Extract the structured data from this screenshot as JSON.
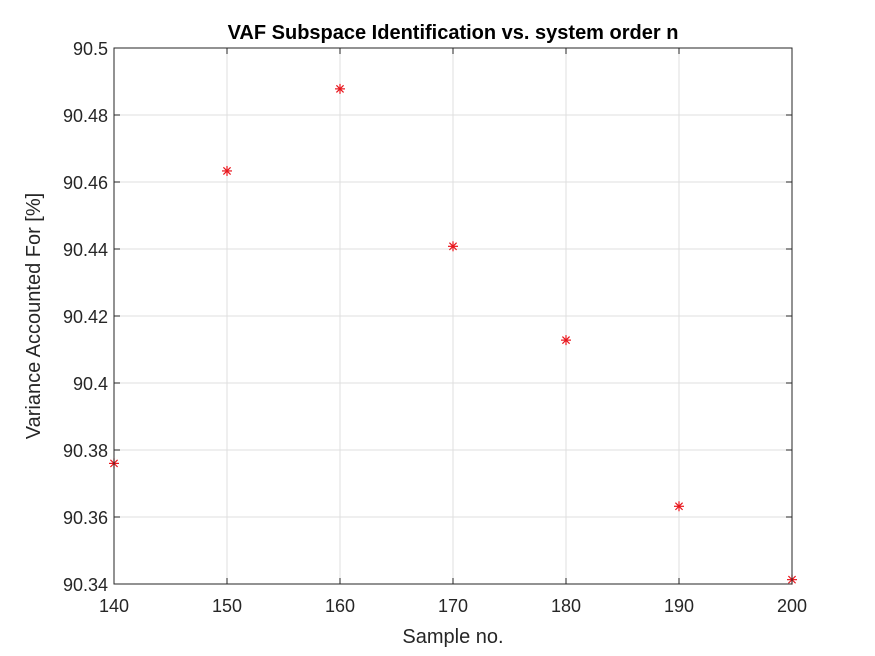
{
  "chart_data": {
    "type": "scatter",
    "title": "VAF Subspace Identification vs. system order n",
    "xlabel": "Sample no.",
    "ylabel": "Variance Accounted For [%]",
    "xlim": [
      140,
      200
    ],
    "ylim": [
      90.34,
      90.5
    ],
    "xticks": [
      140,
      150,
      160,
      170,
      180,
      190,
      200
    ],
    "xtick_labels": [
      "140",
      "150",
      "160",
      "170",
      "180",
      "190",
      "200"
    ],
    "yticks": [
      90.34,
      90.36,
      90.38,
      90.4,
      90.42,
      90.44,
      90.46,
      90.48,
      90.5
    ],
    "ytick_labels": [
      "90.34",
      "90.36",
      "90.38",
      "90.4",
      "90.42",
      "90.44",
      "90.46",
      "90.48",
      "90.5"
    ],
    "grid": true,
    "marker": "asterisk",
    "marker_color": "#e8161d",
    "series": [
      {
        "x": [
          140,
          150,
          160,
          170,
          180,
          190,
          200
        ],
        "y": [
          90.376,
          90.4633,
          90.4878,
          90.4408,
          90.4128,
          90.3632,
          90.3413
        ]
      }
    ]
  }
}
